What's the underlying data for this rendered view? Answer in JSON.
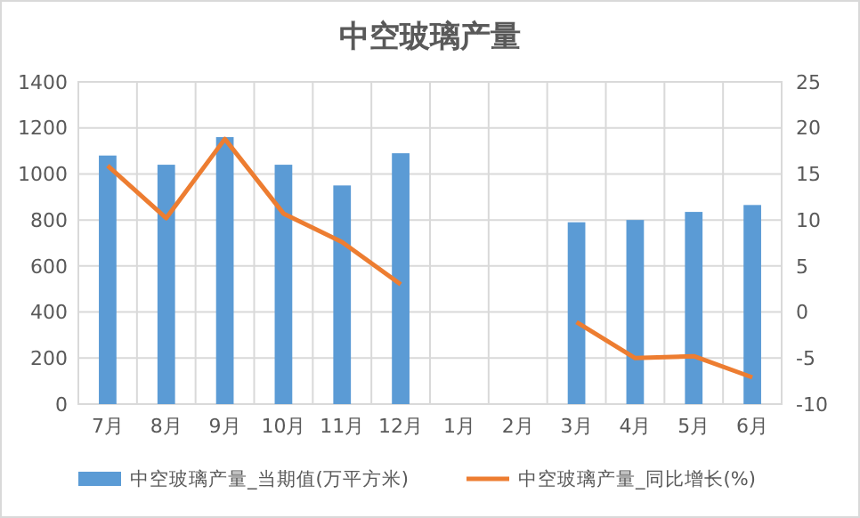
{
  "chart_data": {
    "type": "bar",
    "title": "中空玻璃产量",
    "categories": [
      "7月",
      "8月",
      "9月",
      "10月",
      "11月",
      "12月",
      "1月",
      "2月",
      "3月",
      "4月",
      "5月",
      "6月"
    ],
    "series": [
      {
        "name": "中空玻璃产量_当期值(万平方米)",
        "color": "#5b9bd5",
        "values": [
          1080,
          1040,
          1160,
          1040,
          950,
          1090,
          null,
          null,
          790,
          800,
          835,
          865
        ]
      },
      {
        "name": "中空玻璃产量_同比增长(%)",
        "type": "line",
        "axis": "y2",
        "color": "#ed7d31",
        "values": [
          15.9,
          10.2,
          18.8,
          10.7,
          7.6,
          3,
          null,
          null,
          -1.1,
          -5,
          -4.8,
          -7.1
        ]
      }
    ],
    "ylim": [
      0,
      1400
    ],
    "yticks": [
      0,
      200,
      400,
      600,
      800,
      1000,
      1200,
      1400
    ],
    "y2lim": [
      -10,
      25
    ],
    "y2ticks": [
      -10,
      -5,
      0,
      5,
      10,
      15,
      20,
      25
    ],
    "grid": true,
    "legend": "bottom",
    "marker": "none",
    "line_style": "solid"
  }
}
